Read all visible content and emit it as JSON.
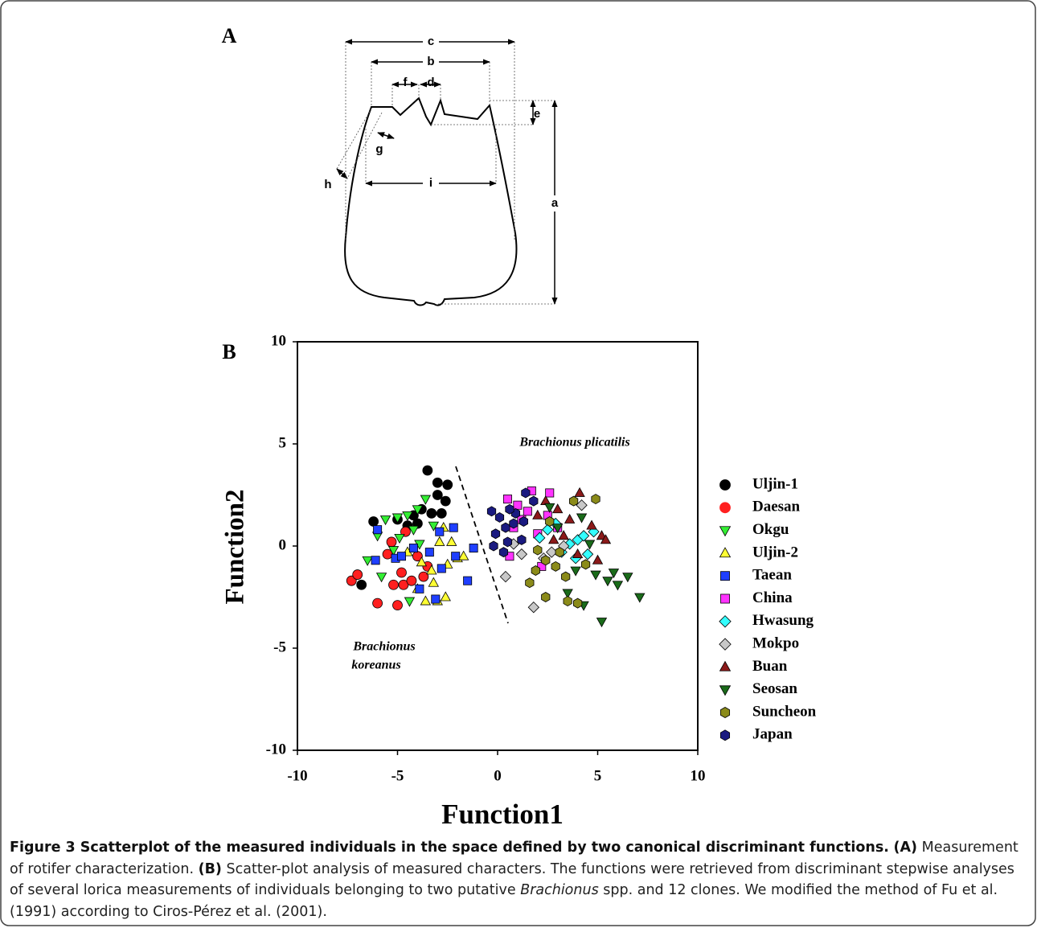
{
  "panel_a": {
    "label": "A",
    "dimension_labels": [
      "c",
      "b",
      "f",
      "d",
      "e",
      "g",
      "h",
      "i",
      "a"
    ]
  },
  "chart_data": {
    "type": "scatter",
    "panel_label": "B",
    "x_label": "Function1",
    "y_label": "Function2",
    "xlim": [
      -10,
      10
    ],
    "ylim": [
      -10,
      10
    ],
    "xticks": [
      -10,
      -5,
      0,
      5,
      10
    ],
    "yticks": [
      -10,
      -5,
      0,
      5,
      10
    ],
    "annotations": [
      "Brachionus plicatilis",
      "Brachionus",
      "koreanus"
    ],
    "legend": "right",
    "series": [
      {
        "name": "Uljin-1",
        "color": "#000000",
        "marker": "circle",
        "x": [
          -3.5,
          -3,
          -2.5,
          -3,
          -3.8,
          -4.2,
          -5,
          -6.2,
          -2.8,
          -3.3,
          -4.5,
          -6.8,
          -2.6,
          -4
        ],
        "y": [
          3.7,
          3.1,
          3,
          2.5,
          1.8,
          1.5,
          1.3,
          1.2,
          1.6,
          1.6,
          1,
          -1.9,
          2.2,
          1.1
        ]
      },
      {
        "name": "Daesan",
        "color": "#ff2020",
        "marker": "circle",
        "x": [
          -7.3,
          -7,
          -6,
          -5,
          -5.2,
          -4.7,
          -4.3,
          -5.5,
          -4.8,
          -5.3,
          -3.5,
          -4,
          -3.7,
          -4.6
        ],
        "y": [
          -1.7,
          -1.4,
          -2.8,
          -2.9,
          -1.9,
          -1.9,
          -1.7,
          -0.4,
          -1.3,
          0.2,
          -1,
          -0.5,
          -1.5,
          0.7
        ]
      },
      {
        "name": "Okgu",
        "color": "#33ee33",
        "marker": "triangle-down",
        "x": [
          -6.5,
          -6,
          -5.6,
          -5,
          -4.5,
          -4,
          -3.6,
          -5.2,
          -4.4,
          -5.8,
          -3.2,
          -4.9,
          -3.9,
          -4.2
        ],
        "y": [
          -0.7,
          0.5,
          1.3,
          1.4,
          1.5,
          1.8,
          2.3,
          -0.2,
          -2.7,
          -1.5,
          1,
          0.4,
          0.1,
          0.8
        ]
      },
      {
        "name": "Uljin-2",
        "color": "#ffff33",
        "marker": "triangle-up",
        "x": [
          -2.5,
          -3,
          -3.6,
          -2.6,
          -2,
          -2.9,
          -3.3,
          -2.7,
          -4,
          -3.8,
          -2.3,
          -4.5,
          -1.7,
          -3.2
        ],
        "y": [
          -0.9,
          -2.7,
          -2.7,
          -2.5,
          -0.6,
          0.2,
          -1.2,
          0.9,
          -2.1,
          -0.8,
          0.2,
          -0.3,
          -0.5,
          -1.8
        ]
      },
      {
        "name": "Taean",
        "color": "#1f3fff",
        "marker": "square",
        "x": [
          -6,
          -6.1,
          -5.1,
          -4.8,
          -3.9,
          -3.1,
          -2.8,
          -2.2,
          -1.5,
          -1.2,
          -2.9,
          -4.2,
          -2.1,
          -3.4
        ],
        "y": [
          0.8,
          -0.7,
          -0.6,
          -0.5,
          -2.1,
          -2.6,
          -1.1,
          0.9,
          -1.7,
          -0.1,
          0.7,
          -0.1,
          -0.5,
          -0.3
        ]
      },
      {
        "name": "China",
        "color": "#ff33ff",
        "marker": "square",
        "x": [
          0.5,
          1,
          1.7,
          2.6,
          0.8,
          2,
          1.2,
          2.5,
          3,
          1.5,
          0.6,
          2.2
        ],
        "y": [
          2.3,
          2,
          2.7,
          2.6,
          0.9,
          0.6,
          1.3,
          1.5,
          0.9,
          1.7,
          -0.5,
          -1
        ]
      },
      {
        "name": "Hwasung",
        "color": "#33ffff",
        "marker": "diamond",
        "x": [
          2.5,
          3.2,
          4,
          4.8,
          2.1,
          3.6,
          4.5,
          2.9,
          3.9,
          4.3
        ],
        "y": [
          0.8,
          -0.3,
          0.3,
          0.7,
          0.4,
          0.1,
          -0.4,
          1.1,
          -0.6,
          0.5
        ]
      },
      {
        "name": "Mokpo",
        "color": "#c8c8c8",
        "marker": "diamond",
        "x": [
          0.4,
          1.8,
          4.2,
          1.2,
          2.7,
          3.3,
          0.8,
          2.3
        ],
        "y": [
          -1.5,
          -3,
          2,
          -0.4,
          -0.3,
          0,
          0.1,
          -0.6
        ]
      },
      {
        "name": "Buan",
        "color": "#8b1a1a",
        "marker": "triangle-up",
        "x": [
          4.1,
          5.2,
          3,
          2.4,
          4.7,
          3.6,
          5.4,
          2.8,
          4,
          3.3,
          2,
          5
        ],
        "y": [
          2.6,
          0.5,
          1.8,
          2.2,
          1,
          1.3,
          0.3,
          0.3,
          -0.4,
          0.5,
          1.5,
          -0.7
        ]
      },
      {
        "name": "Seosan",
        "color": "#1a6b1a",
        "marker": "triangle-down",
        "x": [
          7.1,
          6.5,
          5.2,
          5.8,
          4.3,
          3.5,
          5.5,
          4.2,
          3,
          4.6,
          3.9,
          6,
          2.6,
          4.9
        ],
        "y": [
          -2.5,
          -1.5,
          -3.7,
          -1.3,
          -2.9,
          -2.3,
          -1.7,
          1.4,
          0.9,
          0.1,
          -1.2,
          -1.9,
          1.9,
          -1.4
        ]
      },
      {
        "name": "Suncheon",
        "color": "#8b8b1a",
        "marker": "hexagon",
        "x": [
          4.9,
          3.8,
          2.6,
          2,
          1.6,
          2.4,
          3.5,
          4,
          2.9,
          3.4,
          1.9,
          2.4,
          4.4,
          3.1
        ],
        "y": [
          2.3,
          2.2,
          1.2,
          -0.2,
          -1.8,
          -2.5,
          -2.7,
          -2.8,
          -1,
          -1.5,
          -1.2,
          -0.7,
          -0.9,
          -0.3
        ]
      },
      {
        "name": "Japan",
        "color": "#1a1a80",
        "marker": "hexagon",
        "x": [
          -0.3,
          0.1,
          0.4,
          1.4,
          0.3,
          -0.2,
          0.8,
          1.2,
          0.9,
          -0.1,
          1.8,
          0.5,
          1.3,
          0.6
        ],
        "y": [
          1.7,
          1.4,
          0.9,
          2.6,
          -0.3,
          0,
          1.1,
          0.3,
          1.6,
          0.6,
          2.2,
          0.2,
          1.2,
          1.8
        ]
      }
    ]
  },
  "caption": {
    "title": "Figure 3 Scatterplot of the measured individuals in the space defined by two canonical discriminant functions.",
    "label_a": "(A)",
    "text_a": "Measurement of rotifer characterization.",
    "label_b": "(B)",
    "text_b": "Scatter-plot analysis of measured characters. The functions were retrieved from discriminant stepwise analyses of several lorica measurements of individuals belonging to two putative",
    "genus": "Brachionus",
    "text_end": "spp. and 12 clones. We modified the method of Fu et al. (1991) according to Ciros-Pérez et al. (2001)."
  }
}
